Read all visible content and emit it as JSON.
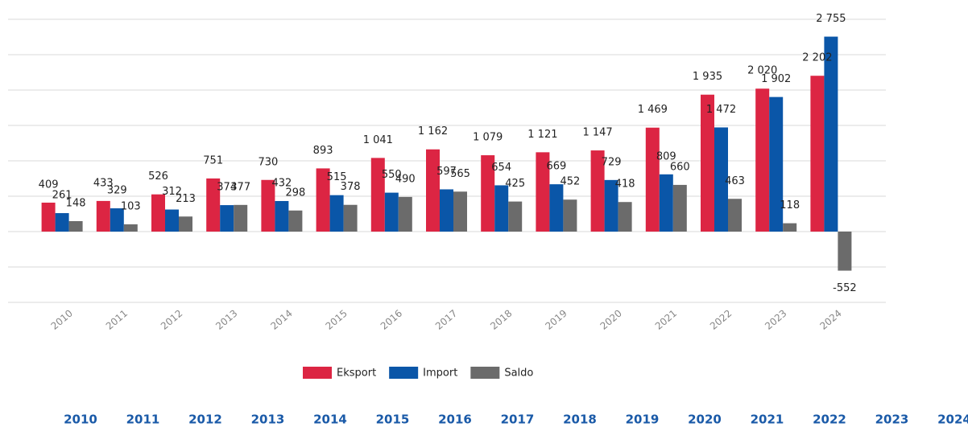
{
  "chart_data": {
    "type": "bar",
    "categories": [
      "2010",
      "2011",
      "2012",
      "2013",
      "2014",
      "2015",
      "2016",
      "2017",
      "2018",
      "2019",
      "2020",
      "2021",
      "2022",
      "2023",
      "2024"
    ],
    "series": [
      {
        "name": "Eksport",
        "color": "#dc2543",
        "values": [
          409,
          433,
          526,
          751,
          730,
          893,
          1041,
          1162,
          1079,
          1121,
          1147,
          1469,
          1935,
          2020,
          2202
        ],
        "value_labels": [
          "409",
          "433",
          "526",
          "751",
          "730",
          "893",
          "1 041",
          "1 162",
          "1 079",
          "1 121",
          "1 147",
          "1 469",
          "1 935",
          "2 020",
          "2 202"
        ]
      },
      {
        "name": "Import",
        "color": "#0a56a8",
        "values": [
          261,
          329,
          312,
          374,
          432,
          515,
          550,
          597,
          654,
          669,
          729,
          809,
          1472,
          1902,
          2755
        ],
        "value_labels": [
          "261",
          "329",
          "312",
          "374",
          "432",
          "515",
          "550",
          "597",
          "654",
          "669",
          "729",
          "809",
          "1 472",
          "1 902",
          "2 755"
        ]
      },
      {
        "name": "Saldo",
        "color": "#6b6b6b",
        "values": [
          148,
          103,
          213,
          377,
          298,
          378,
          490,
          565,
          425,
          452,
          418,
          660,
          463,
          118,
          -552
        ],
        "value_labels": [
          "148",
          "103",
          "213",
          "377",
          "298",
          "378",
          "490",
          "565",
          "425",
          "452",
          "418",
          "660",
          "463",
          "118",
          "-552"
        ]
      }
    ],
    "ylim": [
      -1000,
      3000
    ],
    "yticks": [
      -1000,
      -500,
      0,
      500,
      1000,
      1500,
      2000,
      2500,
      3000
    ],
    "grid": true,
    "legend": "bottom"
  },
  "table": {
    "columns": [
      "2010",
      "2011",
      "2012",
      "2013",
      "2014",
      "2015",
      "2016",
      "2017",
      "2018",
      "2019",
      "2020",
      "2021",
      "2022",
      "2023",
      "2024"
    ]
  }
}
